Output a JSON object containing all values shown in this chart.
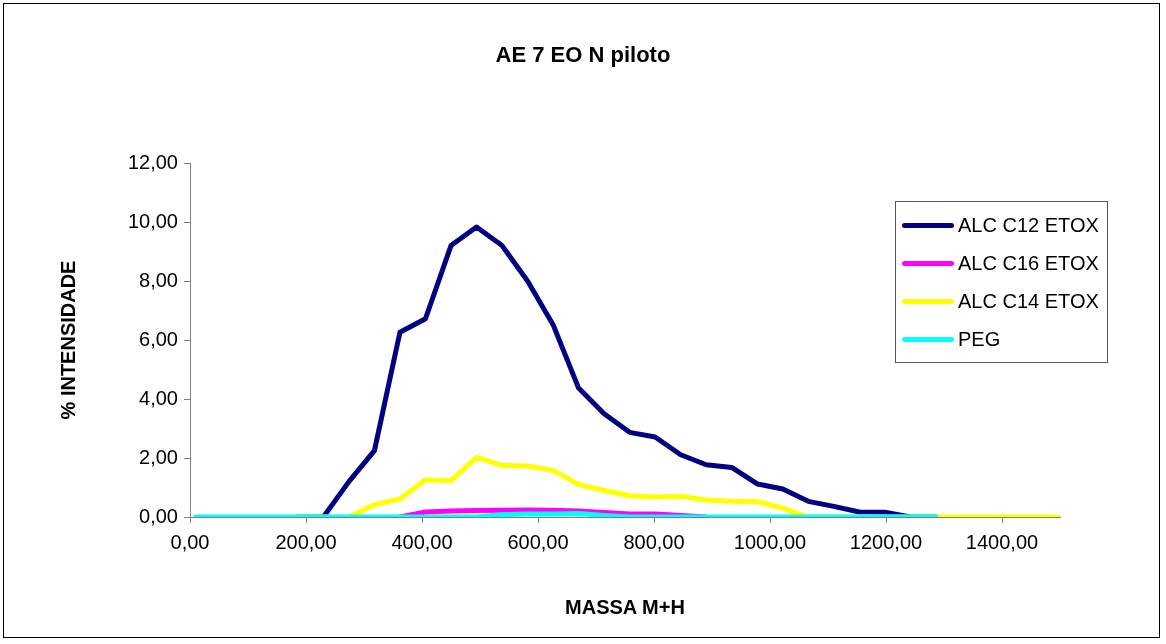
{
  "chart_data": {
    "type": "line",
    "title": "AE 7 EO N piloto",
    "xlabel": "MASSA M+H",
    "ylabel": "% INTENSIDADE",
    "x": [
      10,
      54,
      98,
      142,
      186,
      230,
      274,
      318,
      362,
      406,
      450,
      494,
      538,
      582,
      626,
      670,
      714,
      758,
      802,
      846,
      890,
      934,
      978,
      1022,
      1066,
      1110,
      1154,
      1198,
      1242,
      1286,
      1330,
      1374,
      1418,
      1462,
      1496
    ],
    "series": [
      {
        "name": "ALC C12 ETOX",
        "color": "#000080",
        "values": [
          null,
          null,
          null,
          null,
          0,
          0,
          1.2,
          2.25,
          6.26,
          6.72,
          9.2,
          9.83,
          9.2,
          8.0,
          6.52,
          4.37,
          3.5,
          2.87,
          2.71,
          2.11,
          1.77,
          1.68,
          1.12,
          0.95,
          0.53,
          0.36,
          0.17,
          0.16,
          0,
          0,
          null,
          null,
          null,
          null,
          null
        ]
      },
      {
        "name": "ALC C16 ETOX",
        "color": "#ff00ff",
        "values": [
          null,
          null,
          null,
          null,
          null,
          null,
          null,
          null,
          0,
          0.17,
          0.2,
          0.22,
          0.23,
          0.24,
          0.23,
          0.2,
          0.15,
          0.1,
          0.1,
          0.05,
          0,
          null,
          null,
          null,
          null,
          null,
          null,
          null,
          null,
          null,
          null,
          null,
          null,
          null,
          null
        ]
      },
      {
        "name": "ALC C14 ETOX",
        "color": "#ffff00",
        "values": [
          null,
          null,
          null,
          null,
          0,
          0,
          0,
          0.42,
          0.61,
          1.26,
          1.23,
          2.02,
          1.75,
          1.73,
          1.58,
          1.1,
          0.9,
          0.72,
          0.68,
          0.7,
          0.58,
          0.53,
          0.52,
          0.3,
          0,
          0,
          0,
          0,
          0,
          0,
          0,
          0,
          0,
          0,
          0
        ]
      },
      {
        "name": "PEG",
        "color": "#00ffff",
        "values": [
          0,
          0,
          0,
          0,
          0,
          0,
          0,
          0,
          0,
          0,
          0,
          0,
          0.08,
          0.1,
          0.1,
          0.12,
          0.05,
          0,
          0,
          0,
          0,
          0,
          0,
          0,
          0,
          0,
          0,
          0,
          0,
          0,
          null,
          null,
          null,
          null,
          null
        ]
      }
    ],
    "xlim": [
      0,
      1500
    ],
    "xticks": [
      {
        "value": 0,
        "label": "0,00"
      },
      {
        "value": 200,
        "label": "200,00"
      },
      {
        "value": 400,
        "label": "400,00"
      },
      {
        "value": 600,
        "label": "600,00"
      },
      {
        "value": 800,
        "label": "800,00"
      },
      {
        "value": 1000,
        "label": "1000,00"
      },
      {
        "value": 1200,
        "label": "1200,00"
      },
      {
        "value": 1400,
        "label": "1400,00"
      }
    ],
    "ylim": [
      0,
      12
    ],
    "yticks": [
      {
        "value": 0,
        "label": "0,00"
      },
      {
        "value": 2,
        "label": "2,00"
      },
      {
        "value": 4,
        "label": "4,00"
      },
      {
        "value": 6,
        "label": "6,00"
      },
      {
        "value": 8,
        "label": "8,00"
      },
      {
        "value": 10,
        "label": "10,00"
      },
      {
        "value": 12,
        "label": "12,00"
      }
    ],
    "grid": false,
    "legend": "right",
    "marker": "none",
    "line_style": "solid"
  }
}
